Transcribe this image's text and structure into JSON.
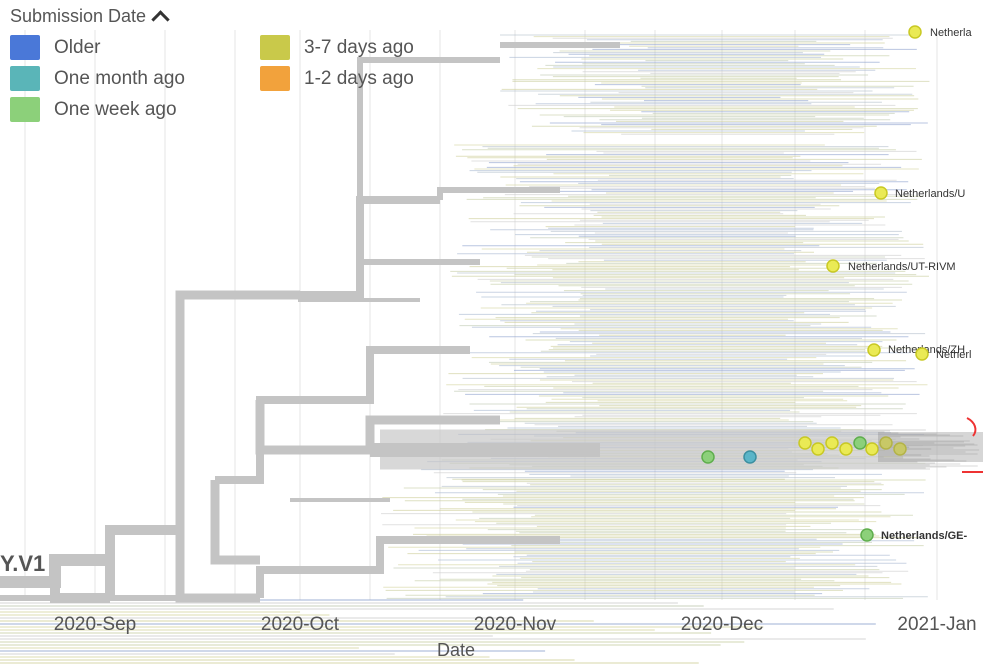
{
  "legend": {
    "title": "Submission Date",
    "items": [
      {
        "label": "Older",
        "color": "#4a78d8"
      },
      {
        "label": "3-7 days ago",
        "color": "#c9c94a"
      },
      {
        "label": "One month ago",
        "color": "#5ab5b8"
      },
      {
        "label": "1-2 days ago",
        "color": "#f2a23c"
      },
      {
        "label": "One week ago",
        "color": "#8cd07a"
      }
    ]
  },
  "clade_label": "Y.V1",
  "tips": [
    {
      "label": "Netherla",
      "color": "yellow"
    },
    {
      "label": "Netherlands/U",
      "color": "yellow"
    },
    {
      "label": "Netherlands/UT-RIVM",
      "color": "yellow"
    },
    {
      "label": "Netherlands/ZH",
      "color": "yellow"
    },
    {
      "label": "Netherl",
      "color": "yellow"
    },
    {
      "label": "Netherlands/GE-",
      "color": "green"
    }
  ],
  "x_axis": {
    "label": "Date",
    "ticks": [
      "2020-Sep",
      "2020-Oct",
      "2020-Nov",
      "2020-Dec",
      "2021-Jan"
    ]
  }
}
